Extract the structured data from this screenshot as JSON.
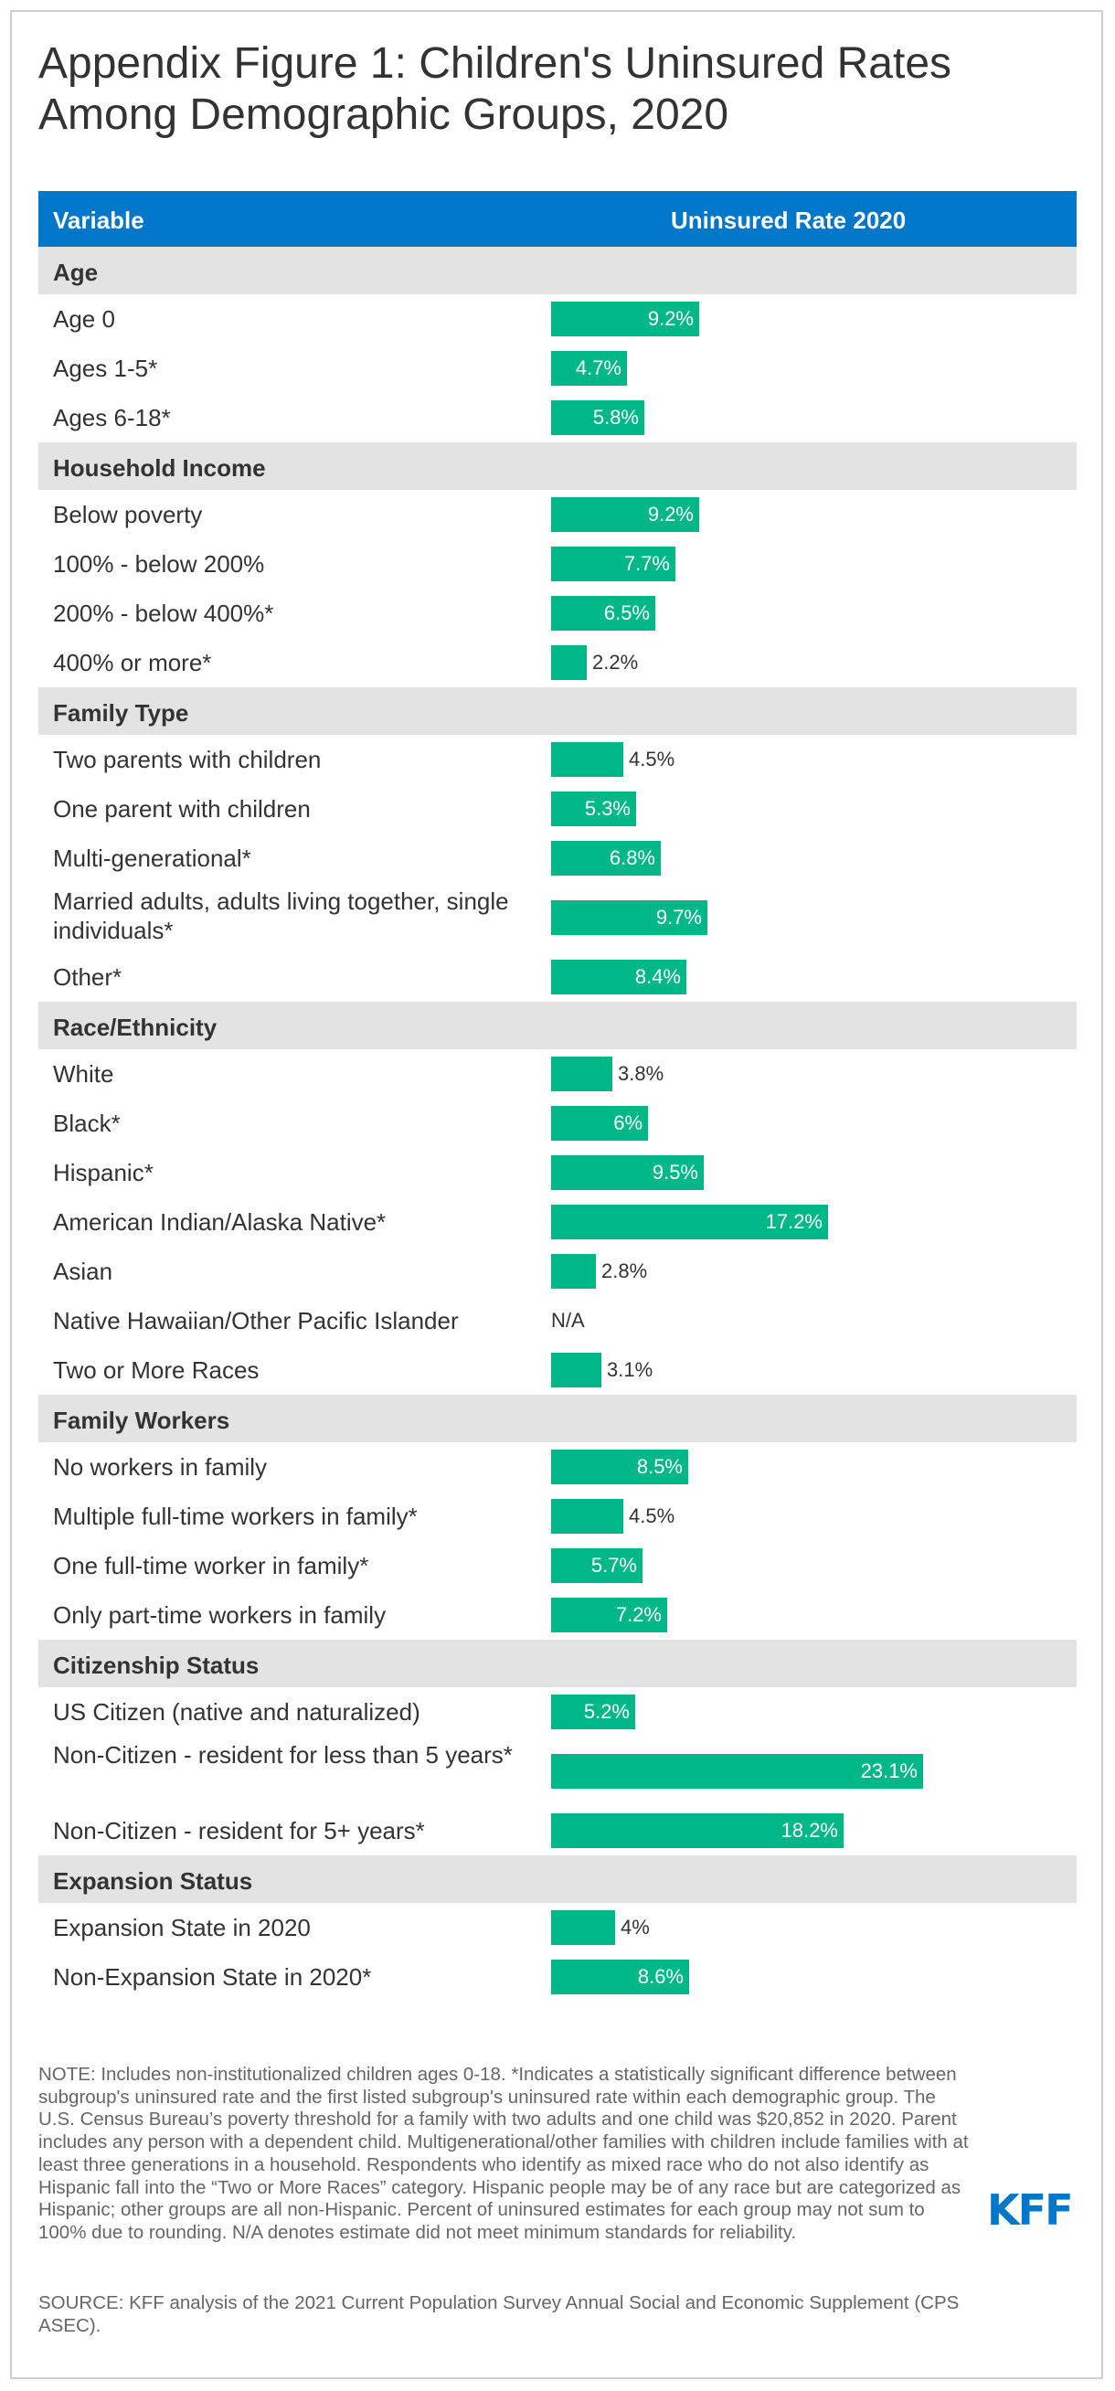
{
  "title": "Appendix Figure 1: Children's Uninsured Rates Among Demographic Groups, 2020",
  "header": {
    "variable": "Variable",
    "rate": "Uninsured Rate 2020"
  },
  "colors": {
    "header_bg": "#0077c8",
    "bar": "#00b887",
    "group_bg": "#e3e3e3"
  },
  "chart_data": {
    "type": "bar",
    "orientation": "horizontal",
    "title": "Appendix Figure 1: Children's Uninsured Rates Among Demographic Groups, 2020",
    "xlabel": "Uninsured Rate 2020",
    "unit": "%",
    "xlim": [
      0,
      24
    ],
    "groups": [
      {
        "name": "Age",
        "items": [
          {
            "label": "Age 0",
            "value": 9.2,
            "display": "9.2%"
          },
          {
            "label": "Ages 1-5*",
            "value": 4.7,
            "display": "4.7%"
          },
          {
            "label": "Ages 6-18*",
            "value": 5.8,
            "display": "5.8%"
          }
        ]
      },
      {
        "name": "Household Income",
        "items": [
          {
            "label": "Below poverty",
            "value": 9.2,
            "display": "9.2%"
          },
          {
            "label": "100% - below 200%",
            "value": 7.7,
            "display": "7.7%"
          },
          {
            "label": "200% - below 400%*",
            "value": 6.5,
            "display": "6.5%"
          },
          {
            "label": "400% or more*",
            "value": 2.2,
            "display": "2.2%"
          }
        ]
      },
      {
        "name": "Family Type",
        "items": [
          {
            "label": "Two parents with children",
            "value": 4.5,
            "display": "4.5%"
          },
          {
            "label": "One parent with children",
            "value": 5.3,
            "display": "5.3%"
          },
          {
            "label": "Multi-generational*",
            "value": 6.8,
            "display": "6.8%"
          },
          {
            "label": "Married adults, adults living together, single individuals*",
            "value": 9.7,
            "display": "9.7%",
            "tall": true
          },
          {
            "label": "Other*",
            "value": 8.4,
            "display": "8.4%"
          }
        ]
      },
      {
        "name": "Race/Ethnicity",
        "items": [
          {
            "label": "White",
            "value": 3.8,
            "display": "3.8%"
          },
          {
            "label": "Black*",
            "value": 6,
            "display": "6%"
          },
          {
            "label": "Hispanic*",
            "value": 9.5,
            "display": "9.5%"
          },
          {
            "label": "American Indian/Alaska Native*",
            "value": 17.2,
            "display": "17.2%"
          },
          {
            "label": "Asian",
            "value": 2.8,
            "display": "2.8%"
          },
          {
            "label": "Native Hawaiian/Other Pacific Islander",
            "value": null,
            "display": "N/A"
          },
          {
            "label": "Two or More Races",
            "value": 3.1,
            "display": "3.1%"
          }
        ]
      },
      {
        "name": "Family Workers",
        "items": [
          {
            "label": "No workers in family",
            "value": 8.5,
            "display": "8.5%"
          },
          {
            "label": "Multiple full-time workers in family*",
            "value": 4.5,
            "display": "4.5%"
          },
          {
            "label": "One full-time worker in family*",
            "value": 5.7,
            "display": "5.7%"
          },
          {
            "label": "Only part-time workers in family",
            "value": 7.2,
            "display": "7.2%"
          }
        ]
      },
      {
        "name": "Citizenship Status",
        "items": [
          {
            "label": "US Citizen (native and naturalized)",
            "value": 5.2,
            "display": "5.2%"
          },
          {
            "label": "Non-Citizen - resident for less than 5 years*",
            "value": 23.1,
            "display": "23.1%",
            "tall": true
          },
          {
            "label": "Non-Citizen - resident for 5+ years*",
            "value": 18.2,
            "display": "18.2%"
          }
        ]
      },
      {
        "name": "Expansion Status",
        "items": [
          {
            "label": "Expansion State in 2020",
            "value": 4,
            "display": "4%"
          },
          {
            "label": "Non-Expansion State in 2020*",
            "value": 8.6,
            "display": "8.6%"
          }
        ]
      }
    ]
  },
  "note": "NOTE: Includes non-institutionalized children ages 0-18. *Indicates a statistically significant difference between subgroup's uninsured rate and the first listed subgroup's uninsured rate within each demographic group. The U.S. Census Bureau’s poverty threshold for a family with two adults and one child was $20,852 in 2020. Parent includes any person with a dependent child. Multigenerational/other families with children include families with at least three generations in a household. Respondents who identify as mixed race who do not also identify as Hispanic fall into the “Two or More Races” category. Hispanic people may be of any race but are categorized as Hispanic; other groups are all non-Hispanic. Percent of uninsured estimates for each group may not sum to 100% due to rounding. N/A denotes estimate did not meet minimum standards for reliability.",
  "source": "SOURCE: KFF analysis of the 2021 Current Population Survey Annual Social and Economic Supplement (CPS ASEC).",
  "logo_text": "KFF"
}
